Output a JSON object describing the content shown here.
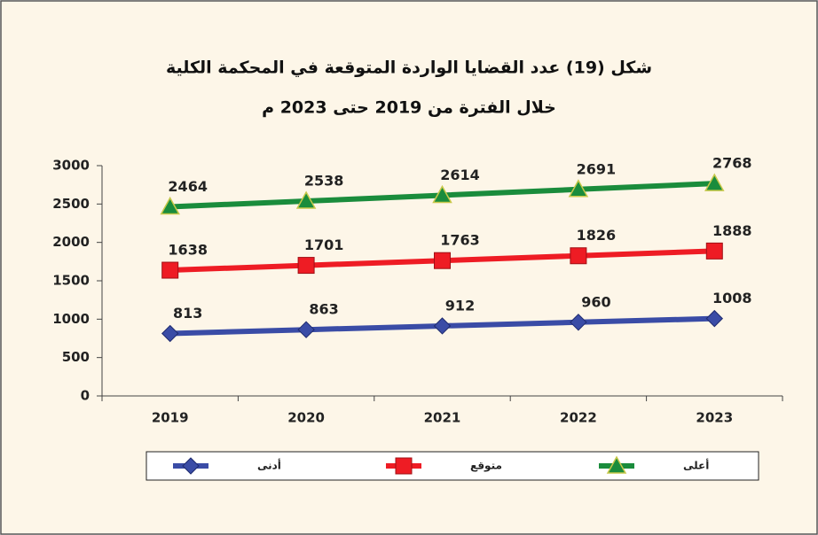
{
  "chart_data": {
    "type": "line",
    "title": "شكل (19) عدد القضايا الواردة المتوقعة في المحكمة الكلية",
    "subtitle": "خلال الفترة من 2019 حتى 2023 م",
    "categories": [
      "2019",
      "2020",
      "2021",
      "2022",
      "2023"
    ],
    "series": [
      {
        "name": "أعلى",
        "color": "#1a8c3c",
        "marker": "triangle",
        "values": [
          2464,
          2538,
          2614,
          2691,
          2768
        ]
      },
      {
        "name": "متوقع",
        "color": "#ee1c24",
        "marker": "square",
        "values": [
          1638,
          1701,
          1763,
          1826,
          1888
        ]
      },
      {
        "name": "أدنى",
        "color": "#3a4ca6",
        "marker": "diamond",
        "values": [
          813,
          863,
          912,
          960,
          1008
        ]
      }
    ],
    "ylim": [
      0,
      3000
    ],
    "yticks": [
      0,
      500,
      1000,
      1500,
      2000,
      2500,
      3000
    ],
    "grid": false
  }
}
